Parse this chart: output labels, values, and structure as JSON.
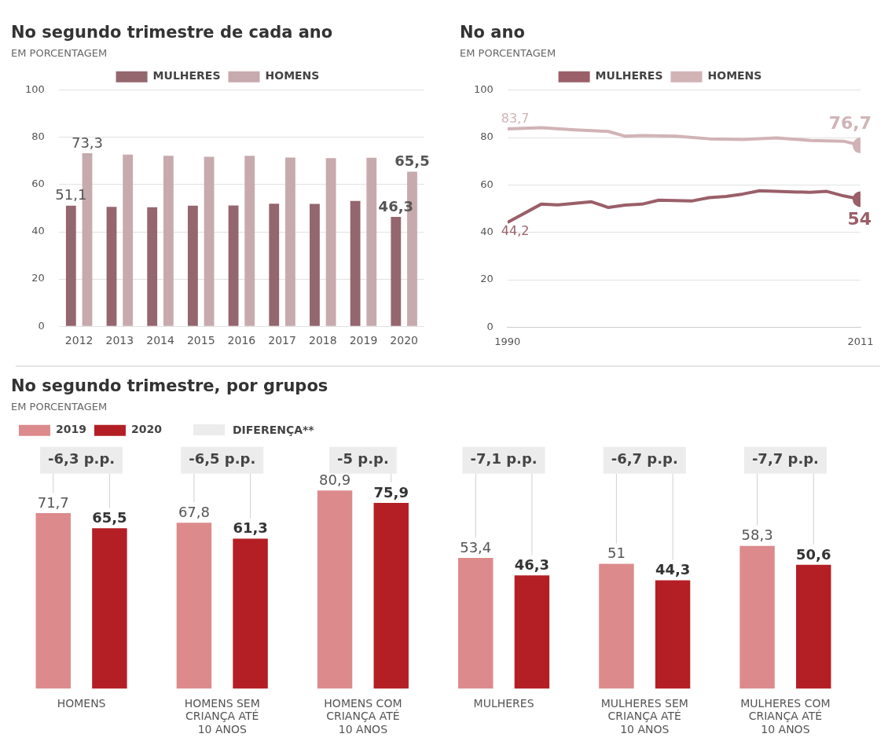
{
  "chart_data": [
    {
      "type": "bar",
      "title": "No segundo trimestre de cada ano",
      "subtitle": "EM PORCENTAGEM",
      "categories": [
        "2012",
        "2013",
        "2014",
        "2015",
        "2016",
        "2017",
        "2018",
        "2019",
        "2020"
      ],
      "series": [
        {
          "name": "MULHERES",
          "color": "#94666e",
          "values": [
            51.1,
            50.6,
            50.4,
            51.1,
            51.2,
            51.9,
            51.8,
            53.1,
            46.3
          ],
          "value_labels": [
            "51,1",
            null,
            null,
            null,
            null,
            null,
            null,
            null,
            "46,3"
          ]
        },
        {
          "name": "HOMENS",
          "color": "#c7aaad",
          "values": [
            73.3,
            72.7,
            72.2,
            71.8,
            72.2,
            71.5,
            71.2,
            71.4,
            65.5
          ],
          "value_labels": [
            "73,3",
            null,
            null,
            null,
            null,
            null,
            null,
            null,
            "65,5"
          ]
        }
      ],
      "ylim": [
        0,
        100
      ],
      "yticks": [
        0,
        20,
        40,
        60,
        80,
        100
      ],
      "grid": "y",
      "legend": "top"
    },
    {
      "type": "line",
      "title": "No ano",
      "subtitle": "EM PORCENTAGEM",
      "xlim": [
        1990,
        2011
      ],
      "xticks": [
        1990,
        2011
      ],
      "series": [
        {
          "name": "MULHERES",
          "color": "#9a5f69",
          "x": [
            1990,
            1992,
            1993,
            1995,
            1996,
            1997,
            1998,
            1999,
            2001,
            2002,
            2003,
            2004,
            2005,
            2007,
            2008,
            2009,
            2010,
            2011
          ],
          "values": [
            44.2,
            51.9,
            51.6,
            52.9,
            50.5,
            51.5,
            51.9,
            53.6,
            53.3,
            54.7,
            55.2,
            56.2,
            57.6,
            57.1,
            56.9,
            57.3,
            55.4,
            54
          ],
          "value_labels": [
            "44,2",
            null,
            null,
            null,
            null,
            null,
            null,
            null,
            null,
            null,
            null,
            null,
            null,
            null,
            null,
            null,
            null,
            "54"
          ]
        },
        {
          "name": "HOMENS",
          "color": "#d1b3b6",
          "x": [
            1990,
            1992,
            1994,
            1996,
            1997,
            1998,
            2000,
            2002,
            2004,
            2006,
            2008,
            2010,
            2011
          ],
          "values": [
            83.7,
            84.2,
            83.3,
            82.6,
            80.6,
            80.9,
            80.6,
            79.5,
            79.2,
            79.9,
            78.8,
            78.5,
            76.7
          ],
          "value_labels": [
            "83,7",
            null,
            null,
            null,
            null,
            null,
            null,
            null,
            null,
            null,
            null,
            null,
            "76,7"
          ]
        },
        {
          "type": "scatter",
          "color": "#9a5f69",
          "x": [
            2011
          ],
          "values": [
            54
          ]
        },
        {
          "type": "scatter",
          "color": "#d1b3b6",
          "x": [
            2011
          ],
          "values": [
            76.7
          ]
        }
      ],
      "ylim": [
        0,
        100
      ],
      "yticks": [
        0,
        20,
        40,
        60,
        80,
        100
      ],
      "grid": "y",
      "legend": "top"
    },
    {
      "type": "bar",
      "title": "No segundo trimestre, por grupos",
      "subtitle": "EM PORCENTAGEM",
      "categories": [
        "HOMENS",
        "HOMENS SEM CRIANÇA ATÉ 10 ANOS",
        "HOMENS COM CRIANÇA ATÉ 10 ANOS",
        "MULHERES",
        "MULHERES SEM CRIANÇA ATÉ 10 ANOS",
        "MULHERES COM CRIANÇA ATÉ 10 ANOS"
      ],
      "series": [
        {
          "name": "2019",
          "color": "#dc8a8c",
          "values": [
            71.7,
            67.8,
            80.9,
            53.4,
            51,
            58.3
          ],
          "value_labels": [
            "71,7",
            "67,8",
            "80,9",
            "53,4",
            "51",
            "58,3"
          ]
        },
        {
          "name": "2020",
          "color": "#b31f24",
          "values": [
            65.5,
            61.3,
            75.9,
            46.3,
            44.3,
            50.6
          ],
          "value_labels": [
            "65,5",
            "61,3",
            "75,9",
            "46,3",
            "44,3",
            "50,6"
          ]
        }
      ],
      "annotations": [
        "DIFERENÇA**",
        "-6,3 p.p.",
        "-6,5 p.p.",
        "-5 p.p.",
        "-7,1 p.p.",
        "-6,7 p.p.",
        "-7,7 p.p."
      ],
      "tick_labels": "x",
      "grid": false,
      "legend": "top left"
    }
  ]
}
